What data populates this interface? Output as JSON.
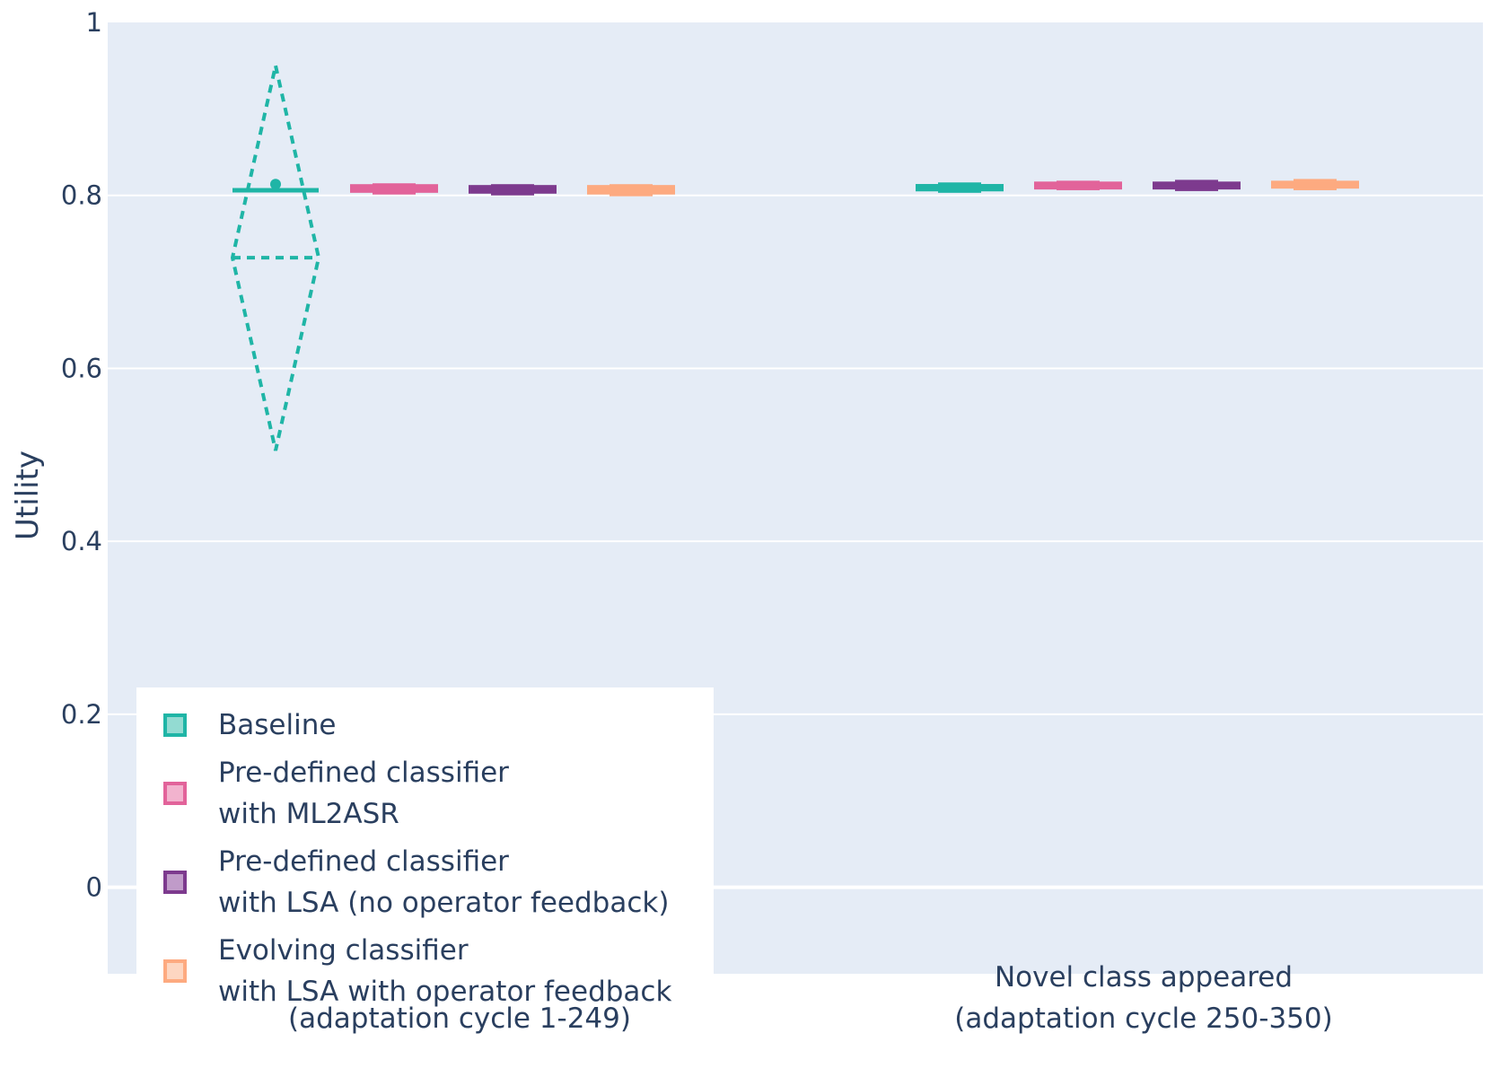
{
  "chart_data": {
    "type": "violin",
    "ylabel": "Utility",
    "ylim": [
      -0.1,
      1.0
    ],
    "yticks": [
      "1",
      "0.8",
      "0.6",
      "0.4",
      "0.2",
      "0"
    ],
    "ytick_values": [
      1.0,
      0.8,
      0.6,
      0.4,
      0.2,
      0.0
    ],
    "grid": true,
    "legend_position": "bottom-left",
    "categories": [
      {
        "lines": [
          "(adaptation cycle 1-249)"
        ]
      },
      {
        "lines": [
          "Novel class appeared",
          "(adaptation cycle 250-350)"
        ]
      }
    ],
    "series": [
      {
        "name_lines": [
          "Baseline"
        ],
        "color": "#1fb5a6",
        "fill": "#93dbd2",
        "stats": [
          {
            "min": 0.505,
            "max": 0.95,
            "median": 0.806,
            "box": [
              0.803,
              0.808
            ],
            "outlier": 0.813,
            "widest": 0.728,
            "dashed": true
          },
          {
            "min": 0.803,
            "max": 0.815,
            "median": 0.809,
            "box": [
              0.806,
              0.813
            ]
          }
        ]
      },
      {
        "name_lines": [
          "Pre-defined classifier",
          "with ML2ASR"
        ],
        "color": "#e2639a",
        "fill": "#f2b3ce",
        "stats": [
          {
            "min": 0.801,
            "max": 0.814,
            "median": 0.808,
            "box": [
              0.803,
              0.813
            ]
          },
          {
            "min": 0.806,
            "max": 0.817,
            "median": 0.811,
            "box": [
              0.808,
              0.816
            ]
          }
        ]
      },
      {
        "name_lines": [
          "Pre-defined classifier",
          "with LSA (no operator feedback)"
        ],
        "color": "#7d3a8e",
        "fill": "#c09bc9",
        "stats": [
          {
            "min": 0.8,
            "max": 0.813,
            "median": 0.807,
            "box": [
              0.802,
              0.812
            ]
          },
          {
            "min": 0.805,
            "max": 0.818,
            "median": 0.811,
            "box": [
              0.807,
              0.816
            ]
          }
        ]
      },
      {
        "name_lines": [
          "Evolving classifier",
          "with LSA with operator feedback"
        ],
        "color": "#fdaa80",
        "fill": "#fdd6c1",
        "stats": [
          {
            "min": 0.799,
            "max": 0.813,
            "median": 0.807,
            "box": [
              0.801,
              0.812
            ]
          },
          {
            "min": 0.806,
            "max": 0.819,
            "median": 0.812,
            "box": [
              0.808,
              0.817
            ]
          }
        ]
      }
    ]
  }
}
